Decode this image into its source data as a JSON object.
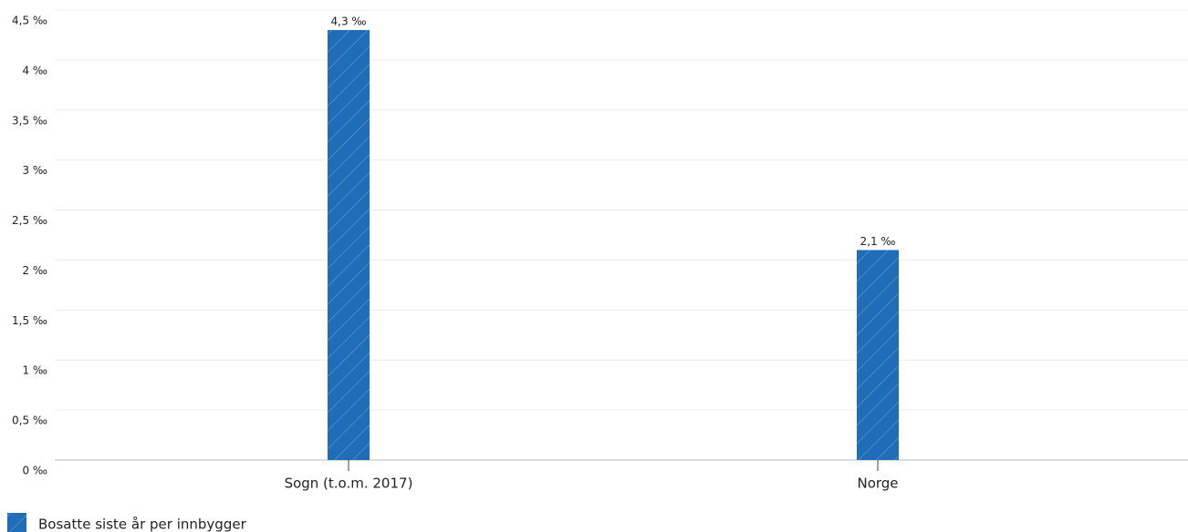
{
  "chart_data": {
    "type": "bar",
    "categories": [
      "Sogn (t.o.m. 2017)",
      "Norge"
    ],
    "series": [
      {
        "name": "Bosatte siste år per innbygger",
        "color": "#1f6cb8",
        "values": [
          4.3,
          2.1
        ],
        "value_labels": [
          "4,3 ‰",
          "2,1 ‰"
        ]
      }
    ],
    "ylim": [
      0,
      4.5
    ],
    "yticks": [
      {
        "value": 0,
        "label": "0 ‰"
      },
      {
        "value": 0.5,
        "label": "0,5 ‰"
      },
      {
        "value": 1,
        "label": "1 ‰"
      },
      {
        "value": 1.5,
        "label": "1,5 ‰"
      },
      {
        "value": 2,
        "label": "2 ‰"
      },
      {
        "value": 2.5,
        "label": "2,5 ‰"
      },
      {
        "value": 3,
        "label": "3 ‰"
      },
      {
        "value": 3.5,
        "label": "3,5 ‰"
      },
      {
        "value": 4,
        "label": "4 ‰"
      },
      {
        "value": 4.5,
        "label": "4,5 ‰"
      }
    ],
    "grid": true,
    "legend": "bottom-left"
  }
}
